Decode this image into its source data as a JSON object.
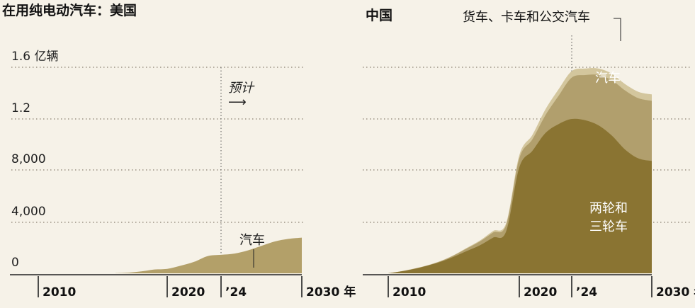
{
  "colors": {
    "background": "#f6f2e8",
    "two_three_wheelers": "#8a7432",
    "cars": "#b19f6d",
    "trucks_buses": "#d3c69d",
    "us_cars": "#b3a069"
  },
  "chart_data": [
    {
      "type": "area",
      "title": "在用纯电动汽车：美国",
      "y_ticks": [
        "0",
        "4,000",
        "8,000",
        "1.2",
        "1.6 亿辆"
      ],
      "y_tick_values": [
        0,
        4000,
        8000,
        12000,
        16000
      ],
      "ylim": [
        0,
        16000
      ],
      "xlim": [
        2006,
        2031
      ],
      "x_ticks": [
        "2010",
        "2020",
        "’24",
        "2030 年"
      ],
      "x_tick_values": [
        2010,
        2020,
        2024,
        2030
      ],
      "projection_start": 2024,
      "projection_label": "预计",
      "projection_arrow": "⟶",
      "grid": true,
      "series": [
        {
          "name": "汽车",
          "x": [
            2016,
            2017,
            2018,
            2019,
            2020,
            2021,
            2022,
            2023,
            2024,
            2025,
            2026,
            2027,
            2028,
            2029,
            2030
          ],
          "values": [
            10,
            50,
            150,
            300,
            350,
            600,
            900,
            1350,
            1450,
            1550,
            1800,
            2150,
            2500,
            2700,
            2800
          ]
        }
      ]
    },
    {
      "type": "area",
      "title": "中国",
      "y_tick_values": [
        0,
        4000,
        8000,
        12000,
        16000
      ],
      "ylim": [
        0,
        16000
      ],
      "xlim": [
        2006,
        2031
      ],
      "x_ticks": [
        "2010",
        "2020",
        "’24",
        "2030 年"
      ],
      "x_tick_values": [
        2010,
        2020,
        2024,
        2030
      ],
      "projection_start": 2024,
      "grid": true,
      "stacked": true,
      "x": [
        2010,
        2011,
        2012,
        2013,
        2014,
        2015,
        2016,
        2017,
        2018,
        2019,
        2020,
        2021,
        2022,
        2023,
        2024,
        2025,
        2026,
        2027,
        2028,
        2029,
        2030
      ],
      "series": [
        {
          "name": "两轮和三轮车",
          "values": [
            0,
            150,
            350,
            600,
            900,
            1300,
            1750,
            2200,
            2800,
            3300,
            8200,
            9500,
            10900,
            11600,
            12000,
            11900,
            11500,
            10700,
            9600,
            8900,
            8700
          ]
        },
        {
          "name": "汽车",
          "values": [
            0,
            10,
            15,
            20,
            50,
            100,
            200,
            300,
            400,
            500,
            700,
            900,
            1400,
            2200,
            3200,
            3500,
            3900,
            4300,
            4600,
            4700,
            4700
          ]
        },
        {
          "name": "货车、卡车和公交汽车",
          "values": [
            0,
            5,
            10,
            10,
            20,
            30,
            50,
            80,
            120,
            150,
            250,
            350,
            450,
            500,
            500,
            500,
            500,
            500,
            500,
            500,
            500
          ]
        }
      ],
      "labels": {
        "trucks": "货车、卡车和公交汽车",
        "cars": "汽车",
        "two_wheel_line1": "两轮和",
        "two_wheel_line2": "三轮车"
      }
    }
  ]
}
